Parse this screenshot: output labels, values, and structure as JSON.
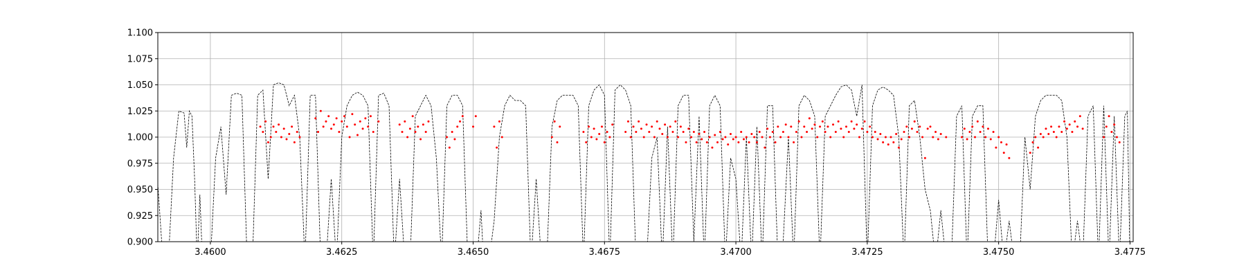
{
  "chart_data": {
    "type": "line",
    "xlim": [
      3.459,
      3.47756
    ],
    "ylim": [
      0.9,
      1.1
    ],
    "xticks": [
      {
        "value": 3.46,
        "label": "3.4600"
      },
      {
        "value": 3.4625,
        "label": "3.4625"
      },
      {
        "value": 3.465,
        "label": "3.4650"
      },
      {
        "value": 3.4675,
        "label": "3.4675"
      },
      {
        "value": 3.47,
        "label": "3.4700"
      },
      {
        "value": 3.4725,
        "label": "3.4725"
      },
      {
        "value": 3.475,
        "label": "3.4750"
      },
      {
        "value": 3.4775,
        "label": "3.4775"
      }
    ],
    "yticks": [
      {
        "value": 0.9,
        "label": "0.900"
      },
      {
        "value": 0.925,
        "label": "0.925"
      },
      {
        "value": 0.95,
        "label": "0.950"
      },
      {
        "value": 0.975,
        "label": "0.975"
      },
      {
        "value": 1.0,
        "label": "1.000"
      },
      {
        "value": 1.025,
        "label": "1.025"
      },
      {
        "value": 1.05,
        "label": "1.050"
      },
      {
        "value": 1.075,
        "label": "1.075"
      },
      {
        "value": 1.1,
        "label": "1.100"
      }
    ],
    "grid": true,
    "series": [
      {
        "color": "#000000",
        "style": "dashed",
        "x": [
          3.459,
          3.4591,
          3.4592,
          3.4593,
          3.4594,
          3.4595,
          3.45955,
          3.4596,
          3.45965,
          3.4597,
          3.45975,
          3.4598,
          3.45985,
          3.46,
          3.4601,
          3.4602,
          3.4603,
          3.4604,
          3.4605,
          3.4606,
          3.4607,
          3.4608,
          3.4609,
          3.461,
          3.4611,
          3.4612,
          3.4613,
          3.4614,
          3.4615,
          3.4616,
          3.4617,
          3.4618,
          3.4619,
          3.462,
          3.4621,
          3.4622,
          3.4623,
          3.4624,
          3.4625,
          3.4626,
          3.4627,
          3.4628,
          3.4629,
          3.463,
          3.4631,
          3.4632,
          3.4633,
          3.4634,
          3.4635,
          3.4636,
          3.4637,
          3.4638,
          3.4639,
          3.464,
          3.4641,
          3.4642,
          3.4643,
          3.4644,
          3.4645,
          3.4646,
          3.4647,
          3.4648,
          3.4649,
          3.465,
          3.4651,
          3.46515,
          3.4652,
          3.4653,
          3.4654,
          3.4655,
          3.4656,
          3.4657,
          3.4658,
          3.4659,
          3.466,
          3.4661,
          3.4662,
          3.4663,
          3.4664,
          3.4665,
          3.4666,
          3.4667,
          3.4668,
          3.4669,
          3.467,
          3.4671,
          3.4672,
          3.4673,
          3.4674,
          3.4675,
          3.4676,
          3.4677,
          3.4678,
          3.4679,
          3.468,
          3.4681,
          3.4682,
          3.4683,
          3.4684,
          3.4685,
          3.4686,
          3.4687,
          3.4688,
          3.4689,
          3.469,
          3.4691,
          3.4692,
          3.4693,
          3.4694,
          3.4695,
          3.4696,
          3.4697,
          3.4698,
          3.4699,
          3.47,
          3.4701,
          3.4702,
          3.4703,
          3.4704,
          3.4705,
          3.4706,
          3.4707,
          3.4708,
          3.4709,
          3.471,
          3.4711,
          3.4712,
          3.4713,
          3.4714,
          3.4715,
          3.4716,
          3.4717,
          3.4718,
          3.4719,
          3.472,
          3.4721,
          3.4722,
          3.4723,
          3.4724,
          3.4725,
          3.4726,
          3.4727,
          3.4728,
          3.4729,
          3.473,
          3.4731,
          3.4732,
          3.4733,
          3.4734,
          3.4735,
          3.4736,
          3.4737,
          3.4738,
          3.4739,
          3.474,
          3.4741,
          3.4742,
          3.4743,
          3.4744,
          3.4745,
          3.4746,
          3.4747,
          3.4748,
          3.4749,
          3.475,
          3.4751,
          3.4752,
          3.4753,
          3.4754,
          3.4755,
          3.4756,
          3.4757,
          3.4758,
          3.4759,
          3.476,
          3.4761,
          3.4762,
          3.4763,
          3.4764,
          3.4765,
          3.4766,
          3.4767,
          3.4768,
          3.4769,
          3.477,
          3.4771,
          3.4772,
          3.4773,
          3.4774,
          3.47745,
          3.4775
        ],
        "values": [
          0.955,
          0.88,
          0.88,
          0.98,
          1.025,
          1.023,
          0.99,
          1.025,
          1.02,
          0.96,
          0.88,
          0.945,
          0.88,
          0.88,
          0.98,
          1.01,
          0.945,
          1.04,
          1.042,
          1.04,
          0.88,
          0.88,
          1.04,
          1.045,
          0.96,
          1.05,
          1.052,
          1.05,
          1.03,
          1.04,
          1.0,
          0.88,
          1.04,
          1.04,
          0.88,
          0.88,
          0.96,
          0.88,
          1.0,
          1.03,
          1.04,
          1.043,
          1.04,
          1.03,
          0.88,
          1.04,
          1.042,
          1.03,
          0.88,
          0.96,
          0.88,
          0.88,
          1.02,
          1.03,
          1.04,
          1.03,
          0.98,
          0.88,
          1.03,
          1.04,
          1.04,
          1.03,
          0.88,
          0.88,
          0.9,
          0.93,
          0.88,
          0.88,
          0.92,
          1.0,
          1.03,
          1.04,
          1.035,
          1.035,
          1.03,
          0.88,
          0.96,
          0.88,
          0.88,
          1.01,
          1.035,
          1.04,
          1.04,
          1.04,
          1.03,
          0.88,
          1.03,
          1.045,
          1.05,
          1.04,
          0.88,
          1.045,
          1.05,
          1.045,
          1.03,
          0.88,
          0.9,
          0.88,
          0.98,
          1.0,
          0.88,
          1.01,
          0.88,
          1.03,
          1.04,
          1.04,
          0.9,
          1.02,
          0.88,
          1.03,
          1.04,
          1.03,
          0.88,
          0.98,
          0.96,
          0.88,
          1.0,
          0.88,
          1.01,
          0.88,
          1.03,
          1.03,
          0.88,
          0.9,
          1.0,
          0.88,
          1.03,
          1.04,
          1.035,
          1.02,
          0.88,
          1.02,
          1.03,
          1.04,
          1.048,
          1.05,
          1.045,
          1.02,
          1.05,
          0.88,
          1.03,
          1.045,
          1.048,
          1.045,
          1.04,
          1.0,
          0.88,
          1.03,
          1.035,
          1.0,
          0.95,
          0.93,
          0.88,
          0.93,
          0.88,
          0.88,
          1.02,
          1.03,
          0.88,
          1.02,
          1.03,
          1.03,
          0.88,
          0.88,
          0.94,
          0.88,
          0.92,
          0.88,
          0.88,
          1.0,
          0.95,
          1.02,
          1.035,
          1.04,
          1.04,
          1.04,
          1.035,
          1.0,
          0.88,
          0.92,
          0.88,
          1.02,
          1.03,
          0.88,
          1.03,
          0.88,
          1.02,
          0.88,
          1.02,
          1.025,
          0.88
        ]
      },
      {
        "color": "#ff0000",
        "style": "dots",
        "x": [
          3.46095,
          3.461,
          3.46105,
          3.4611,
          3.46115,
          3.4612,
          3.46125,
          3.4613,
          3.46135,
          3.4614,
          3.46145,
          3.4615,
          3.46155,
          3.4616,
          3.46165,
          3.4617,
          3.462,
          3.46205,
          3.4621,
          3.46215,
          3.4622,
          3.46225,
          3.4623,
          3.46235,
          3.4624,
          3.46245,
          3.4625,
          3.46255,
          3.4626,
          3.46265,
          3.4627,
          3.46275,
          3.4628,
          3.46285,
          3.4629,
          3.46295,
          3.463,
          3.46305,
          3.4631,
          3.4632,
          3.4636,
          3.46365,
          3.4637,
          3.46375,
          3.4638,
          3.46385,
          3.4639,
          3.46395,
          3.464,
          3.46405,
          3.4641,
          3.46415,
          3.4645,
          3.46455,
          3.4646,
          3.46465,
          3.4647,
          3.46475,
          3.4648,
          3.465,
          3.46505,
          3.4654,
          3.46545,
          3.4655,
          3.46555,
          3.4665,
          3.46655,
          3.4666,
          3.46665,
          3.4671,
          3.46715,
          3.4672,
          3.46725,
          3.4673,
          3.46735,
          3.4674,
          3.46745,
          3.4675,
          3.46755,
          3.4676,
          3.46765,
          3.4679,
          3.46795,
          3.468,
          3.46805,
          3.4681,
          3.46815,
          3.4682,
          3.46825,
          3.4683,
          3.46835,
          3.4684,
          3.46845,
          3.4685,
          3.46855,
          3.4686,
          3.46865,
          3.4687,
          3.46875,
          3.4688,
          3.46885,
          3.4689,
          3.46895,
          3.469,
          3.46905,
          3.4691,
          3.46915,
          3.4692,
          3.46925,
          3.4693,
          3.46935,
          3.4694,
          3.46945,
          3.4695,
          3.46955,
          3.4696,
          3.46965,
          3.4697,
          3.46975,
          3.4698,
          3.46985,
          3.4699,
          3.46995,
          3.47,
          3.47005,
          3.4701,
          3.47015,
          3.4702,
          3.47025,
          3.4703,
          3.47035,
          3.4704,
          3.47045,
          3.4705,
          3.47055,
          3.4706,
          3.47065,
          3.4707,
          3.47075,
          3.4708,
          3.47085,
          3.4709,
          3.47095,
          3.471,
          3.47105,
          3.4711,
          3.47115,
          3.4712,
          3.47125,
          3.4713,
          3.47135,
          3.4714,
          3.47145,
          3.4715,
          3.47155,
          3.4716,
          3.47165,
          3.4717,
          3.47175,
          3.4718,
          3.47185,
          3.4719,
          3.47195,
          3.472,
          3.47205,
          3.4721,
          3.47215,
          3.4722,
          3.47225,
          3.4723,
          3.47235,
          3.4724,
          3.47245,
          3.4725,
          3.47255,
          3.4726,
          3.47265,
          3.4727,
          3.47275,
          3.4728,
          3.47285,
          3.4729,
          3.47295,
          3.473,
          3.47305,
          3.4731,
          3.47315,
          3.4732,
          3.47325,
          3.4733,
          3.47335,
          3.4734,
          3.47345,
          3.4735,
          3.47355,
          3.4736,
          3.47365,
          3.4737,
          3.47375,
          3.4738,
          3.47385,
          3.4739,
          3.474,
          3.4743,
          3.47435,
          3.4744,
          3.47445,
          3.4745,
          3.47455,
          3.4746,
          3.47465,
          3.4747,
          3.47475,
          3.4748,
          3.47485,
          3.4749,
          3.47495,
          3.475,
          3.47505,
          3.4751,
          3.47515,
          3.4752,
          3.4756,
          3.47565,
          3.4757,
          3.47575,
          3.4758,
          3.47585,
          3.4759,
          3.47595,
          3.476,
          3.47605,
          3.4761,
          3.47615,
          3.4762,
          3.47625,
          3.4763,
          3.47635,
          3.4764,
          3.47645,
          3.4765,
          3.47655,
          3.4766,
          3.477,
          3.47705,
          3.4771,
          3.47715,
          3.4772,
          3.47725,
          3.4773
        ],
        "values": [
          1.01,
          1.005,
          1.015,
          0.995,
          1.0,
          1.01,
          1.005,
          1.012,
          1.0,
          1.008,
          0.998,
          1.003,
          1.01,
          0.995,
          1.005,
          1.0,
          1.018,
          1.005,
          1.025,
          1.01,
          1.015,
          1.02,
          1.008,
          1.012,
          1.018,
          1.005,
          1.015,
          1.02,
          1.01,
          1.0,
          1.022,
          1.012,
          1.002,
          1.015,
          1.008,
          1.018,
          1.01,
          1.02,
          1.005,
          1.015,
          1.012,
          1.005,
          1.015,
          1.0,
          1.008,
          1.02,
          1.005,
          1.01,
          0.998,
          1.012,
          1.005,
          1.015,
          1.0,
          0.99,
          1.005,
          0.998,
          1.01,
          1.015,
          1.02,
          1.01,
          1.02,
          1.01,
          0.99,
          1.015,
          1.0,
          1.0,
          1.015,
          0.995,
          1.01,
          1.005,
          0.995,
          1.01,
          1.0,
          1.008,
          0.998,
          1.003,
          1.01,
          0.995,
          1.005,
          1.0,
          1.012,
          1.005,
          1.015,
          1.0,
          1.01,
          1.005,
          1.015,
          1.008,
          1.0,
          1.012,
          1.005,
          1.01,
          1.0,
          1.015,
          1.008,
          1.003,
          1.012,
          1.0,
          1.01,
          1.005,
          1.015,
          1.0,
          1.01,
          1.005,
          0.995,
          1.008,
          1.0,
          1.005,
          0.995,
          1.003,
          0.998,
          1.005,
          0.995,
          1.0,
          0.99,
          1.002,
          0.995,
          1.005,
          0.998,
          1.0,
          0.993,
          1.003,
          0.998,
          1.0,
          0.995,
          1.005,
          0.998,
          1.0,
          0.995,
          1.003,
          1.0,
          0.995,
          1.005,
          1.0,
          0.99,
          1.008,
          1.0,
          1.005,
          0.995,
          1.01,
          1.0,
          1.005,
          1.012,
          1.0,
          1.01,
          0.995,
          1.005,
          1.015,
          1.0,
          1.01,
          1.005,
          1.018,
          1.008,
          1.012,
          1.0,
          1.01,
          1.015,
          1.005,
          1.01,
          1.0,
          1.012,
          1.005,
          1.015,
          1.008,
          1.0,
          1.01,
          1.005,
          1.015,
          1.008,
          1.012,
          1.0,
          1.008,
          1.015,
          1.005,
          1.01,
          1.0,
          1.005,
          0.998,
          1.003,
          0.995,
          1.0,
          0.993,
          1.0,
          0.995,
          1.003,
          0.99,
          0.998,
          1.005,
          1.01,
          1.0,
          1.008,
          1.015,
          1.005,
          1.01,
          1.0,
          0.98,
          1.008,
          1.01,
          1.0,
          1.005,
          0.998,
          1.003,
          1.0,
          1.0,
          1.008,
          0.998,
          1.005,
          1.01,
          1.0,
          1.015,
          1.005,
          1.01,
          1.0,
          1.008,
          0.998,
          1.005,
          0.99,
          1.0,
          0.995,
          0.985,
          0.993,
          0.98,
          0.985,
          0.995,
          1.0,
          0.99,
          1.003,
          1.0,
          1.008,
          1.003,
          1.01,
          1.005,
          1.0,
          1.01,
          1.005,
          1.015,
          1.008,
          1.012,
          1.005,
          1.015,
          1.01,
          1.02,
          1.008,
          1.0,
          1.01,
          1.02,
          1.005,
          1.012,
          1.0,
          0.995
        ]
      }
    ]
  }
}
